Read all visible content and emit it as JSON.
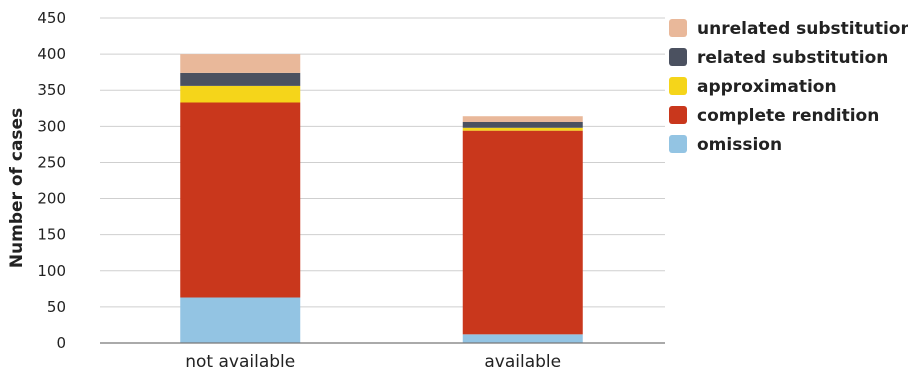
{
  "chart_data": {
    "type": "bar",
    "stacked": true,
    "categories": [
      "not available",
      "available"
    ],
    "ylabel": "Number of cases",
    "ylim": [
      0,
      450
    ],
    "yticks": [
      0,
      50,
      100,
      150,
      200,
      250,
      300,
      350,
      400,
      450
    ],
    "grid": true,
    "legend_position": "right",
    "series": [
      {
        "name": "omission",
        "color": "#93c4e3",
        "values": [
          63,
          12
        ]
      },
      {
        "name": "complete rendition",
        "color": "#c9371c",
        "values": [
          270,
          282
        ]
      },
      {
        "name": "approximation",
        "color": "#f5d51a",
        "values": [
          23,
          4
        ]
      },
      {
        "name": "related substitution",
        "color": "#4b5160",
        "values": [
          18,
          8
        ]
      },
      {
        "name": "unrelated substitution",
        "color": "#e9b89a",
        "values": [
          26,
          8
        ]
      }
    ]
  }
}
